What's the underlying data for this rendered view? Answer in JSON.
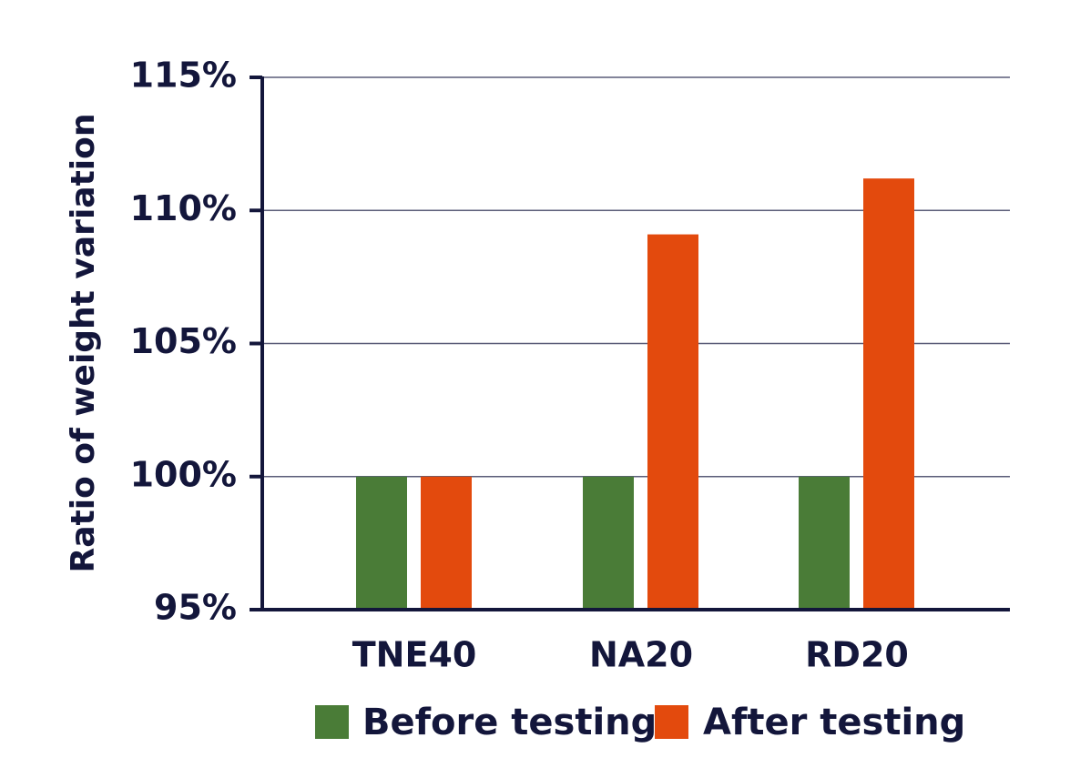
{
  "chart_data": {
    "type": "bar",
    "ylabel": "Ratio of weight variation",
    "xlabel": "",
    "categories": [
      "TNE40",
      "NA20",
      "RD20"
    ],
    "yticks": [
      "95%",
      "100%",
      "105%",
      "110%",
      "115%"
    ],
    "ylim": [
      95,
      115
    ],
    "grid": true,
    "legend_position": "bottom",
    "series": [
      {
        "name": "Before testing",
        "color": "#4a7c37",
        "values": [
          100,
          100,
          100
        ]
      },
      {
        "name": "After testing",
        "color": "#e34a0d",
        "values": [
          100,
          109.1,
          111.2
        ]
      }
    ]
  }
}
